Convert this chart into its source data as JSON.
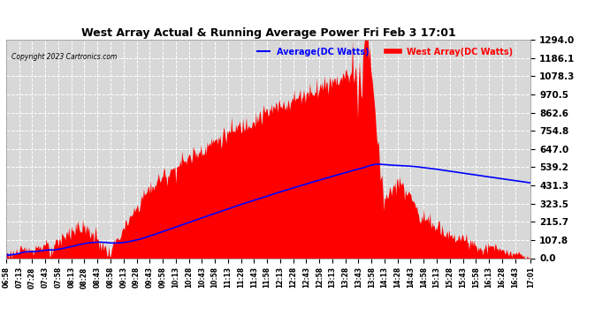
{
  "title": "West Array Actual & Running Average Power Fri Feb 3 17:01",
  "copyright": "Copyright 2023 Cartronics.com",
  "legend_avg": "Average(DC Watts)",
  "legend_west": "West Array(DC Watts)",
  "legend_avg_color": "blue",
  "legend_west_color": "red",
  "ylabel_values": [
    0.0,
    107.8,
    215.7,
    323.5,
    431.3,
    539.2,
    647.0,
    754.8,
    862.6,
    970.5,
    1078.3,
    1186.1,
    1294.0
  ],
  "ymax": 1294.0,
  "background_color": "#ffffff",
  "plot_bg_color": "#d8d8d8",
  "grid_color": "#ffffff",
  "fill_color": "red",
  "avg_line_color": "blue",
  "x_tick_labels": [
    "06:58",
    "07:13",
    "07:28",
    "07:43",
    "07:58",
    "08:13",
    "08:28",
    "08:43",
    "08:58",
    "09:13",
    "09:28",
    "09:43",
    "09:58",
    "10:13",
    "10:28",
    "10:43",
    "10:58",
    "11:13",
    "11:28",
    "11:43",
    "11:58",
    "12:13",
    "12:28",
    "12:43",
    "12:58",
    "13:13",
    "13:28",
    "13:43",
    "13:58",
    "14:13",
    "14:28",
    "14:43",
    "14:58",
    "15:13",
    "15:28",
    "15:43",
    "15:58",
    "16:13",
    "16:28",
    "16:43",
    "17:01"
  ]
}
